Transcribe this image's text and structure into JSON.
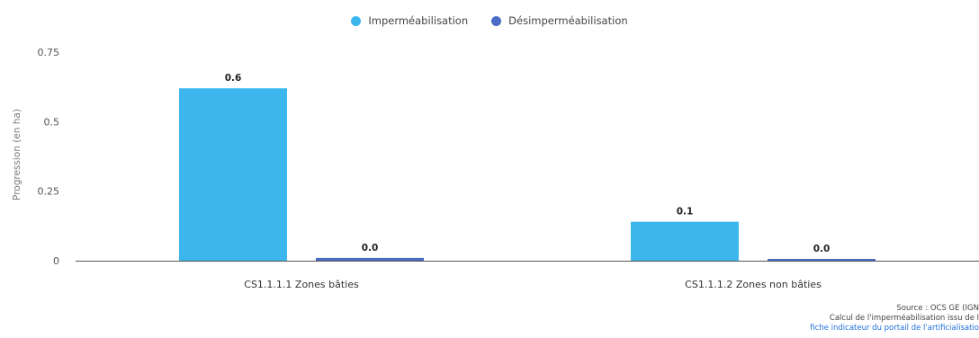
{
  "colors": {
    "impermeabilisation": "#3db6ee",
    "desimpermeabilisation": "#4a6cc4"
  },
  "legend": [
    {
      "label": "Imperméabilisation",
      "color": "#3db6ee"
    },
    {
      "label": "Désimperméabilisation",
      "color": "#4a6cc4"
    }
  ],
  "credits": {
    "line1": "Source : OCS GE (IGN",
    "line2": "Calcul de l'imperméabilisation issu de l",
    "link": "fiche indicateur du portail de l'artificialisatio"
  },
  "chart_data": {
    "type": "bar",
    "ylabel": "Progression (en ha)",
    "ylim": [
      0,
      0.75
    ],
    "yticks": [
      0,
      0.25,
      0.5,
      0.75
    ],
    "ytick_labels": [
      "0",
      "0.25",
      "0.5",
      "0.75"
    ],
    "categories": [
      "CS1.1.1.1 Zones bâties",
      "CS1.1.1.2 Zones non bâties"
    ],
    "series": [
      {
        "name": "Imperméabilisation",
        "values": [
          0.62,
          0.14
        ],
        "labels": [
          "0.6",
          "0.1"
        ],
        "color": "#3db6ee"
      },
      {
        "name": "Désimperméabilisation",
        "values": [
          0.01,
          0.003
        ],
        "labels": [
          "0.0",
          "0.0"
        ],
        "color": "#4a6cc4"
      }
    ],
    "grid": false,
    "legend_position": "top-center"
  }
}
